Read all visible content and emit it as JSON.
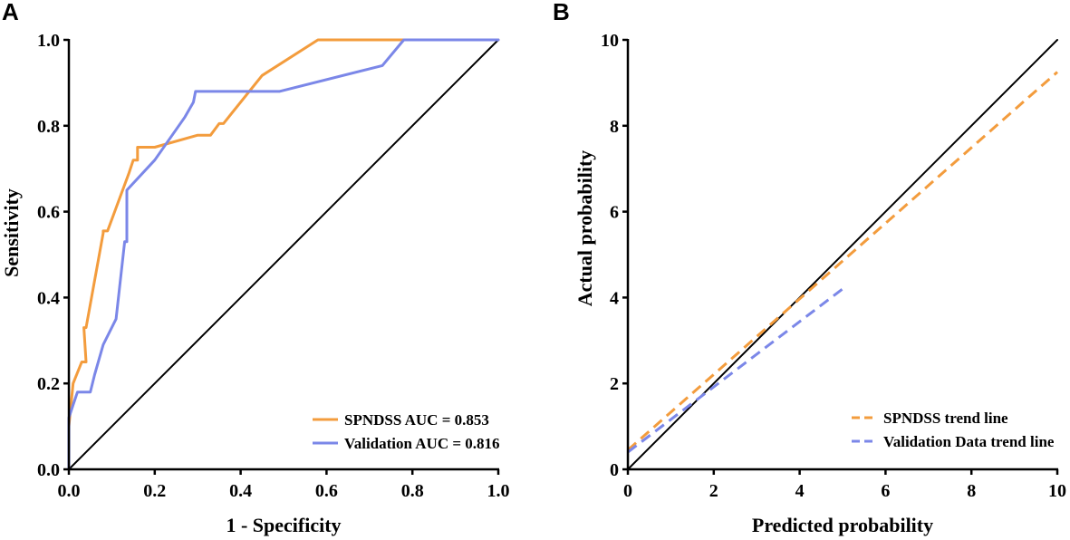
{
  "chart_data": [
    {
      "panel_label": "A",
      "type": "line",
      "title": "",
      "xlabel": "1 - Specificity",
      "ylabel": "Sensitivity",
      "xlim": [
        0,
        1
      ],
      "ylim": [
        0,
        1
      ],
      "xticks": [
        "0.0",
        "0.2",
        "0.4",
        "0.6",
        "0.8",
        "1.0"
      ],
      "yticks": [
        "0.0",
        "0.2",
        "0.4",
        "0.6",
        "0.8",
        "1.0"
      ],
      "grid": false,
      "legend_position": "bottom-right",
      "series": [
        {
          "name": "SPNDSS AUC = 0.853",
          "color": "#F39C3D",
          "style": "solid",
          "x": [
            0,
            0,
            0.01,
            0.03,
            0.04,
            0.035,
            0.04,
            0.08,
            0.08,
            0.09,
            0.14,
            0.15,
            0.16,
            0.16,
            0.2,
            0.3,
            0.33,
            0.35,
            0.36,
            0.45,
            0.58,
            0.8,
            1.0
          ],
          "y": [
            0,
            0.1,
            0.2,
            0.25,
            0.25,
            0.33,
            0.33,
            0.55,
            0.555,
            0.555,
            0.69,
            0.72,
            0.72,
            0.75,
            0.75,
            0.778,
            0.778,
            0.805,
            0.805,
            0.917,
            1.0,
            1.0,
            1.0
          ]
        },
        {
          "name": "Validation AUC = 0.816",
          "color": "#7B87E8",
          "style": "solid",
          "x": [
            0,
            0,
            0.01,
            0.02,
            0.05,
            0.06,
            0.08,
            0.11,
            0.13,
            0.135,
            0.135,
            0.2,
            0.27,
            0.29,
            0.295,
            0.49,
            0.73,
            0.78,
            1.0
          ],
          "y": [
            0,
            0.12,
            0.15,
            0.18,
            0.18,
            0.22,
            0.29,
            0.35,
            0.53,
            0.53,
            0.65,
            0.72,
            0.82,
            0.855,
            0.88,
            0.88,
            0.94,
            1.0,
            1.0
          ]
        },
        {
          "name": "reference",
          "color": "#000000",
          "style": "solid",
          "x": [
            0,
            1
          ],
          "y": [
            0,
            1
          ]
        }
      ]
    },
    {
      "panel_label": "B",
      "type": "line",
      "title": "",
      "xlabel": "Predicted probability",
      "ylabel": "Actual probability",
      "xlim": [
        0,
        10
      ],
      "ylim": [
        0,
        10
      ],
      "xticks": [
        "0",
        "2",
        "4",
        "6",
        "8",
        "10"
      ],
      "yticks": [
        "0",
        "2",
        "4",
        "6",
        "8",
        "10"
      ],
      "grid": false,
      "legend_position": "bottom-right",
      "series": [
        {
          "name": "SPNDSS trend line",
          "color": "#F39C3D",
          "style": "dashed",
          "x": [
            0,
            10
          ],
          "y": [
            0.45,
            9.25
          ]
        },
        {
          "name": "Validation Data trend line",
          "color": "#7B87E8",
          "style": "dashed",
          "x": [
            0,
            5
          ],
          "y": [
            0.4,
            4.2
          ]
        },
        {
          "name": "reference",
          "color": "#000000",
          "style": "solid",
          "x": [
            0,
            10
          ],
          "y": [
            0,
            10
          ]
        }
      ]
    }
  ]
}
